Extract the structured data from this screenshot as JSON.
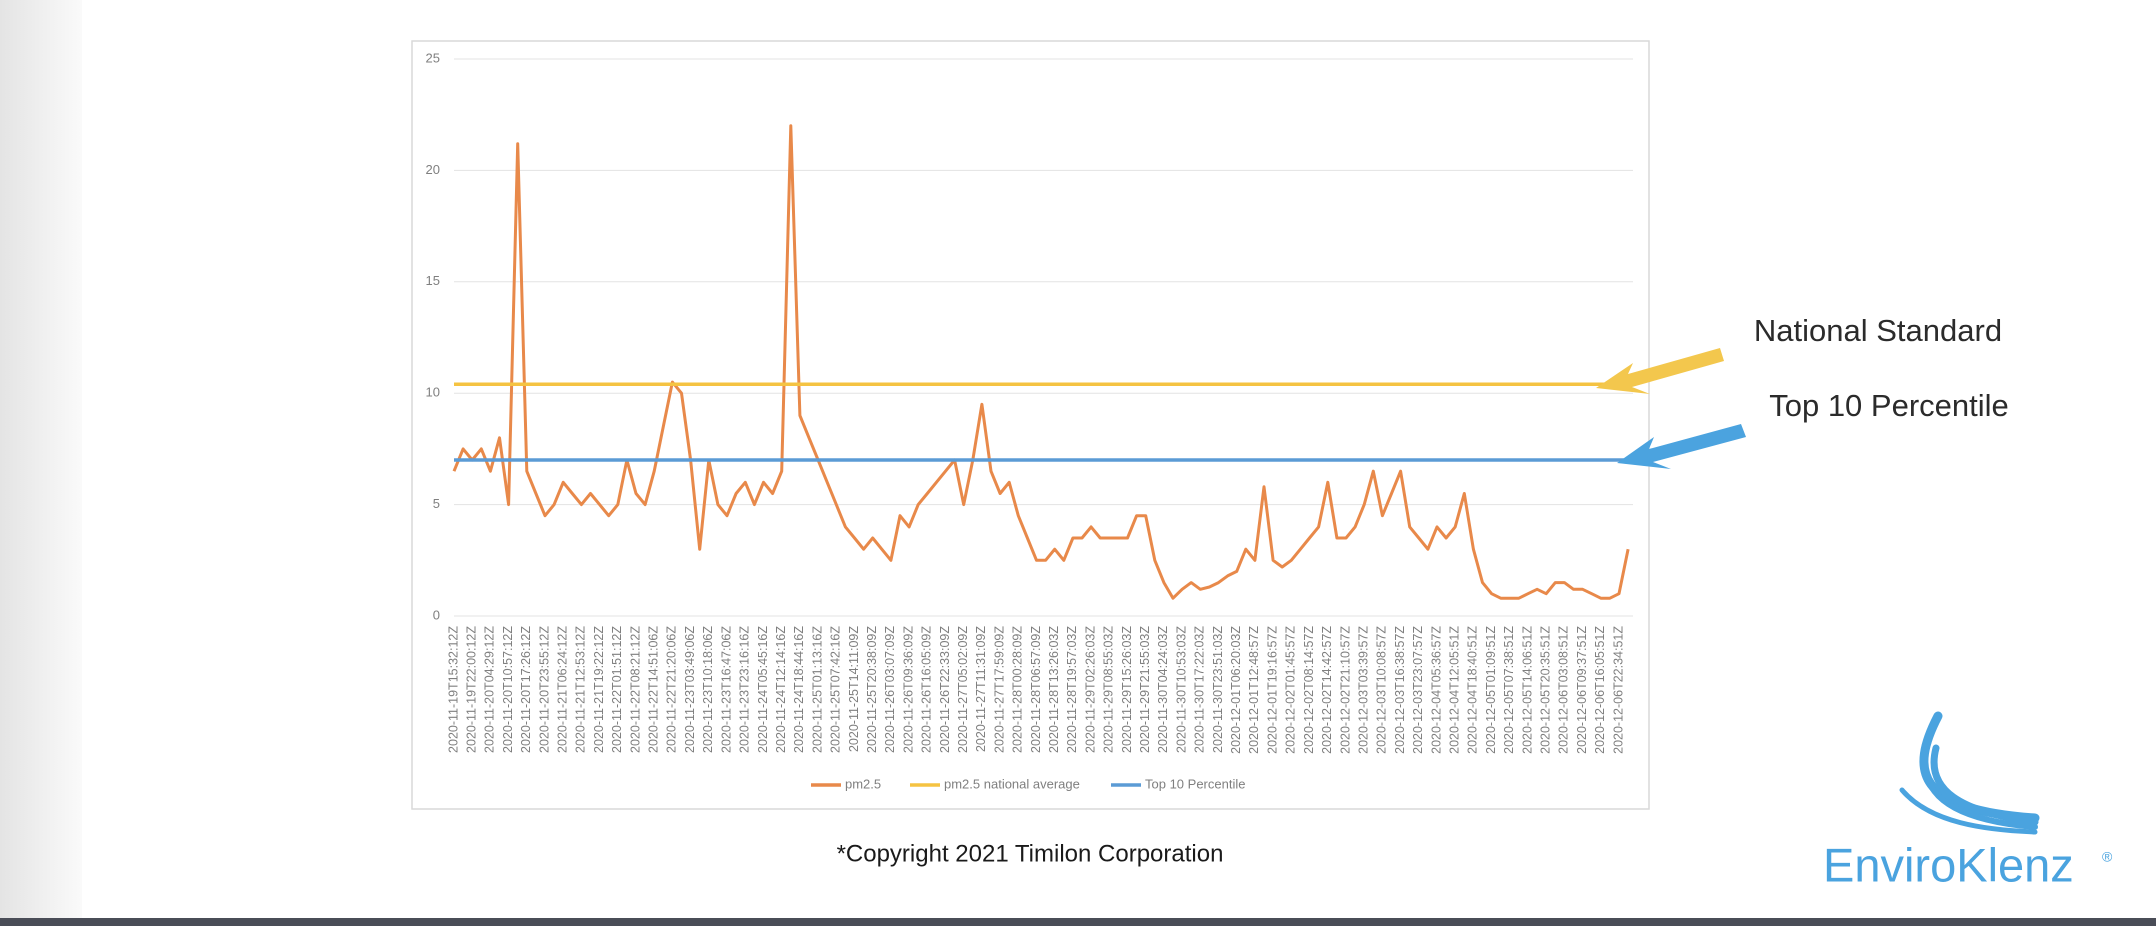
{
  "chart_data": {
    "type": "line",
    "categories": [
      "2020-11-19T15:32:12Z",
      null,
      "2020-11-19T22:00:12Z",
      null,
      "2020-11-20T04:29:12Z",
      null,
      "2020-11-20T10:57:12Z",
      null,
      "2020-11-20T17:26:12Z",
      null,
      "2020-11-20T23:55:12Z",
      null,
      "2020-11-21T06:24:12Z",
      null,
      "2020-11-21T12:53:12Z",
      null,
      "2020-11-21T19:22:12Z",
      null,
      "2020-11-22T01:51:12Z",
      null,
      "2020-11-22T08:21:12Z",
      null,
      "2020-11-22T14:51:06Z",
      null,
      "2020-11-22T21:20:06Z",
      null,
      "2020-11-23T03:49:06Z",
      null,
      "2020-11-23T10:18:06Z",
      null,
      "2020-11-23T16:47:06Z",
      null,
      "2020-11-23T23:16:16Z",
      null,
      "2020-11-24T05:45:16Z",
      null,
      "2020-11-24T12:14:16Z",
      null,
      "2020-11-24T18:44:16Z",
      null,
      "2020-11-25T01:13:16Z",
      null,
      "2020-11-25T07:42:16Z",
      null,
      "2020-11-25T14:11:09Z",
      null,
      "2020-11-25T20:38:09Z",
      null,
      "2020-11-26T03:07:09Z",
      null,
      "2020-11-26T09:36:09Z",
      null,
      "2020-11-26T16:05:09Z",
      null,
      "2020-11-26T22:33:09Z",
      null,
      "2020-11-27T05:02:09Z",
      null,
      "2020-11-27T11:31:09Z",
      null,
      "2020-11-27T17:59:09Z",
      null,
      "2020-11-28T00:28:09Z",
      null,
      "2020-11-28T06:57:09Z",
      null,
      "2020-11-28T13:26:03Z",
      null,
      "2020-11-28T19:57:03Z",
      null,
      "2020-11-29T02:26:03Z",
      null,
      "2020-11-29T08:55:03Z",
      null,
      "2020-11-29T15:26:03Z",
      null,
      "2020-11-29T21:55:03Z",
      null,
      "2020-11-30T04:24:03Z",
      null,
      "2020-11-30T10:53:03Z",
      null,
      "2020-11-30T17:22:03Z",
      null,
      "2020-11-30T23:51:03Z",
      null,
      "2020-12-01T06:20:03Z",
      null,
      "2020-12-01T12:48:57Z",
      null,
      "2020-12-01T19:16:57Z",
      null,
      "2020-12-02T01:45:57Z",
      null,
      "2020-12-02T08:14:57Z",
      null,
      "2020-12-02T14:42:57Z",
      null,
      "2020-12-02T21:10:57Z",
      null,
      "2020-12-03T03:39:57Z",
      null,
      "2020-12-03T10:08:57Z",
      null,
      "2020-12-03T16:38:57Z",
      null,
      "2020-12-03T23:07:57Z",
      null,
      "2020-12-04T05:36:57Z",
      null,
      "2020-12-04T12:05:51Z",
      null,
      "2020-12-04T18:40:51Z",
      null,
      "2020-12-05T01:09:51Z",
      null,
      "2020-12-05T07:38:51Z",
      null,
      "2020-12-05T14:06:51Z",
      null,
      "2020-12-05T20:35:51Z",
      null,
      "2020-12-06T03:08:51Z",
      null,
      "2020-12-06T09:37:51Z",
      null,
      "2020-12-06T16:05:51Z",
      null,
      "2020-12-06T22:34:51Z",
      null
    ],
    "series": [
      {
        "name": "pm2.5",
        "color": "#e8894a",
        "values": [
          6.5,
          7.5,
          7,
          7.5,
          6.5,
          8,
          5,
          21.2,
          6.5,
          5.5,
          4.5,
          5,
          6,
          5.5,
          5,
          5.5,
          5,
          4.5,
          5,
          7,
          5.5,
          5,
          6.5,
          8.5,
          10.5,
          10,
          7,
          3,
          7,
          5,
          4.5,
          5.5,
          6,
          5,
          6,
          5.5,
          6.5,
          22,
          9,
          8,
          7,
          6,
          5,
          4,
          3.5,
          3,
          3.5,
          3,
          2.5,
          4.5,
          4,
          5,
          5.5,
          6,
          6.5,
          7,
          5,
          7,
          9.5,
          6.5,
          5.5,
          6,
          4.5,
          3.5,
          2.5,
          2.5,
          3,
          2.5,
          3.5,
          3.5,
          4,
          3.5,
          3.5,
          3.5,
          3.5,
          4.5,
          4.5,
          2.5,
          1.5,
          0.8,
          1.2,
          1.5,
          1.2,
          1.3,
          1.5,
          1.8,
          2,
          3,
          2.5,
          5.8,
          2.5,
          2.2,
          2.5,
          3,
          3.5,
          4,
          6,
          3.5,
          3.5,
          4,
          5,
          6.5,
          4.5,
          5.5,
          6.5,
          4,
          3.5,
          3,
          4,
          3.5,
          4,
          5.5,
          3,
          1.5,
          1,
          0.8,
          0.8,
          0.8,
          1,
          1.2,
          1,
          1.5,
          1.5,
          1.2,
          1.2,
          1,
          0.8,
          0.8,
          1,
          3
        ]
      }
    ],
    "reference_lines": [
      {
        "name": "pm2.5 national average",
        "color": "#f5c342",
        "value": 10.4
      },
      {
        "name": "Top 10 Percentile",
        "color": "#5b9bd5",
        "value": 7
      }
    ],
    "ylim": [
      0,
      25
    ],
    "yticks": [
      0,
      5,
      10,
      15,
      20,
      25
    ],
    "grid": true,
    "legend": "bottom",
    "annotations": [
      "National Standard",
      "Top 10 Percentile"
    ]
  },
  "footer": "*Copyright 2021 Timilon Corporation",
  "logo": {
    "name": "EnviroKlenz",
    "mark": "®"
  }
}
